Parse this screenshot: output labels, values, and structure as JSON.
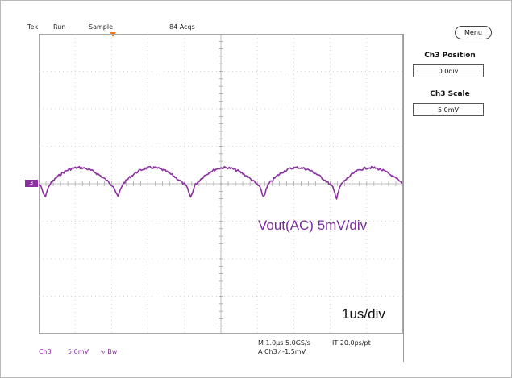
{
  "status_bar": {
    "brand": "Tek",
    "state": "Run",
    "mode": "Sample",
    "acquisitions": "84 Acqs"
  },
  "right_panel": {
    "menu_button": "Menu",
    "position_title": "Ch3 Position",
    "position_value": "0.0div",
    "scale_title": "Ch3 Scale",
    "scale_value": "5.0mV"
  },
  "annotations": {
    "trace_label": "Vout(AC) 5mV/div",
    "timebase_label": "1us/div"
  },
  "channel_marker": "3",
  "bottom_bar": {
    "channel": "Ch3",
    "volts_per_div": "5.0mV",
    "coupling": "∿ Bw",
    "timebase": "M 1.0µs 5.0GS/s",
    "record": "IT 20.0ps/pt",
    "trigger": "A  Ch3  ⁄  -1.5mV"
  },
  "colors": {
    "trace": "#8b2fa1",
    "trigger_marker": "#f07a1b",
    "graticule": "#c8c8c8"
  }
}
